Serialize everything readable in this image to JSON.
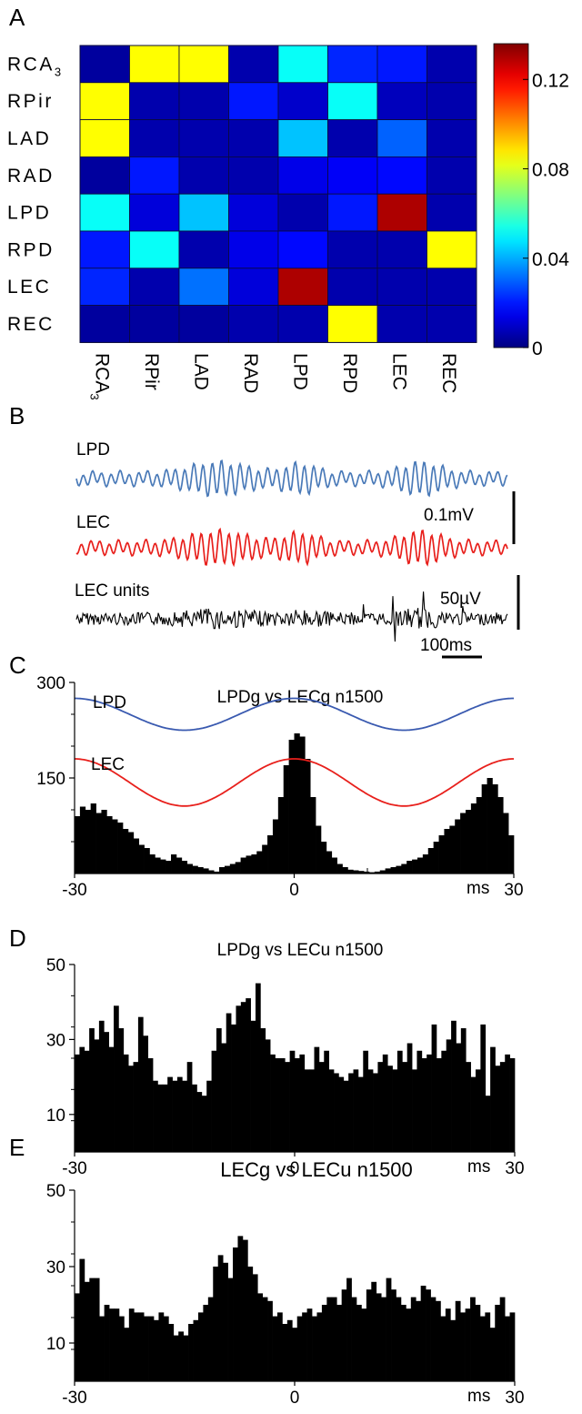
{
  "panels": {
    "A": {
      "letter": "A"
    },
    "B": {
      "letter": "B"
    },
    "C": {
      "letter": "C"
    },
    "D": {
      "letter": "D"
    },
    "E": {
      "letter": "E"
    }
  },
  "chart_data": [
    {
      "id": "A",
      "type": "heatmap",
      "row_labels": [
        "RCA3",
        "RPir",
        "LAD",
        "RAD",
        "LPD",
        "RPD",
        "LEC",
        "REC"
      ],
      "col_labels": [
        "RCA3",
        "RPir",
        "LAD",
        "RAD",
        "LPD",
        "RPD",
        "LEC",
        "REC"
      ],
      "values": [
        [
          0.004,
          0.085,
          0.085,
          0.006,
          0.052,
          0.022,
          0.02,
          0.006
        ],
        [
          0.085,
          0.006,
          0.006,
          0.02,
          0.01,
          0.052,
          0.008,
          0.006
        ],
        [
          0.085,
          0.006,
          0.006,
          0.006,
          0.043,
          0.006,
          0.03,
          0.006
        ],
        [
          0.004,
          0.02,
          0.006,
          0.006,
          0.014,
          0.016,
          0.018,
          0.006
        ],
        [
          0.052,
          0.012,
          0.043,
          0.012,
          0.006,
          0.02,
          0.13,
          0.006
        ],
        [
          0.02,
          0.052,
          0.006,
          0.014,
          0.018,
          0.006,
          0.006,
          0.085
        ],
        [
          0.022,
          0.006,
          0.032,
          0.012,
          0.13,
          0.006,
          0.006,
          0.006
        ],
        [
          0.004,
          0.004,
          0.004,
          0.006,
          0.006,
          0.085,
          0.006,
          0.006
        ]
      ],
      "colorbar": {
        "min": 0,
        "max": 0.136,
        "ticks": [
          0,
          0.04,
          0.08,
          0.12
        ],
        "tick_labels": [
          "0",
          "0.04",
          "0.08",
          "0.12"
        ]
      }
    },
    {
      "id": "B",
      "type": "line",
      "traces": [
        {
          "name": "LPD",
          "color": "#4a7ab8",
          "label": "LPD"
        },
        {
          "name": "LEC",
          "color": "#e8201c",
          "label": "LEC"
        },
        {
          "name": "LEC units",
          "color": "#000000",
          "label": "LEC units"
        }
      ],
      "scalebars": {
        "voltage_lfp": "0.1mV",
        "voltage_units": "50µV",
        "time": "100ms"
      }
    },
    {
      "id": "C",
      "type": "bar",
      "title": "LPDg vs LECg n1500",
      "x_range": [
        -30,
        30
      ],
      "y_range": [
        0,
        300
      ],
      "x_tick_labels": [
        "-30",
        "0",
        "30"
      ],
      "x_unit": "ms",
      "y_tick_labels": [
        "150",
        "300"
      ],
      "bar_values": [
        90,
        105,
        100,
        110,
        95,
        100,
        90,
        85,
        80,
        70,
        65,
        55,
        45,
        40,
        30,
        25,
        22,
        20,
        30,
        25,
        20,
        15,
        12,
        10,
        8,
        5,
        3,
        10,
        12,
        15,
        18,
        25,
        28,
        30,
        35,
        45,
        60,
        85,
        120,
        170,
        210,
        220,
        215,
        180,
        120,
        75,
        50,
        35,
        25,
        15,
        10,
        6,
        5,
        4,
        3,
        2,
        3,
        5,
        8,
        10,
        12,
        15,
        20,
        22,
        25,
        30,
        40,
        50,
        60,
        70,
        75,
        85,
        95,
        100,
        110,
        120,
        140,
        150,
        140,
        120,
        95,
        60
      ],
      "overlays": [
        {
          "name": "LPD",
          "color": "#3a5ab0",
          "label": "LPD",
          "period_ms": 30,
          "mean": 250,
          "amplitude": 25,
          "phase_ms": 0
        },
        {
          "name": "LEC",
          "color": "#e8201c",
          "label": "LEC",
          "period_ms": 30,
          "mean": 143,
          "amplitude": 37,
          "phase_ms": 0
        }
      ]
    },
    {
      "id": "D",
      "type": "bar",
      "title": "LPDg vs LECu n1500",
      "x_range": [
        -30,
        30
      ],
      "y_range": [
        0,
        50
      ],
      "x_tick_labels": [
        "-30",
        "0",
        "30"
      ],
      "x_unit": "ms",
      "y_tick_labels": [
        "10",
        "30",
        "50"
      ],
      "bar_values": [
        26,
        28,
        27,
        33,
        30,
        35,
        32,
        28,
        39,
        33,
        26,
        23,
        24,
        36,
        31,
        25,
        19,
        18,
        18,
        20,
        19,
        20,
        19,
        24,
        18,
        16,
        15,
        19,
        27,
        33,
        29,
        37,
        34,
        39,
        40,
        41,
        35,
        45,
        33,
        30,
        26,
        25,
        25,
        24,
        27,
        25,
        26,
        22,
        22,
        28,
        24,
        27,
        22,
        21,
        20,
        19,
        21,
        22,
        20,
        27,
        22,
        21,
        24,
        26,
        23,
        22,
        27,
        24,
        29,
        22,
        27,
        25,
        26,
        34,
        25,
        27,
        30,
        35,
        29,
        33,
        24,
        20,
        22,
        34,
        15,
        28,
        23,
        24,
        26,
        25
      ],
      "minor_ticks": 12
    },
    {
      "id": "E",
      "type": "bar",
      "title": "LECg vs LECu n1500",
      "x_range": [
        -30,
        30
      ],
      "y_range": [
        0,
        50
      ],
      "x_tick_labels": [
        "-30",
        "0",
        "30"
      ],
      "x_unit": "ms",
      "y_tick_labels": [
        "10",
        "30",
        "50"
      ],
      "bar_values": [
        23,
        32,
        26,
        27,
        27,
        17,
        20,
        19,
        19,
        17,
        14,
        19,
        18,
        18,
        17,
        17,
        16,
        18,
        17,
        15,
        12,
        13,
        12,
        15,
        16,
        18,
        20,
        22,
        30,
        33,
        31,
        27,
        35,
        38,
        37,
        30,
        28,
        23,
        22,
        21,
        17,
        18,
        15,
        16,
        14,
        17,
        18,
        19,
        17,
        18,
        20,
        22,
        22,
        20,
        24,
        27,
        22,
        20,
        19,
        24,
        26,
        23,
        22,
        27,
        24,
        22,
        20,
        19,
        22,
        21,
        25,
        24,
        22,
        21,
        17,
        19,
        16,
        21,
        18,
        19,
        22,
        20,
        17,
        18,
        14,
        20,
        22,
        17,
        18
      ],
      "minor_ticks": 12
    }
  ]
}
